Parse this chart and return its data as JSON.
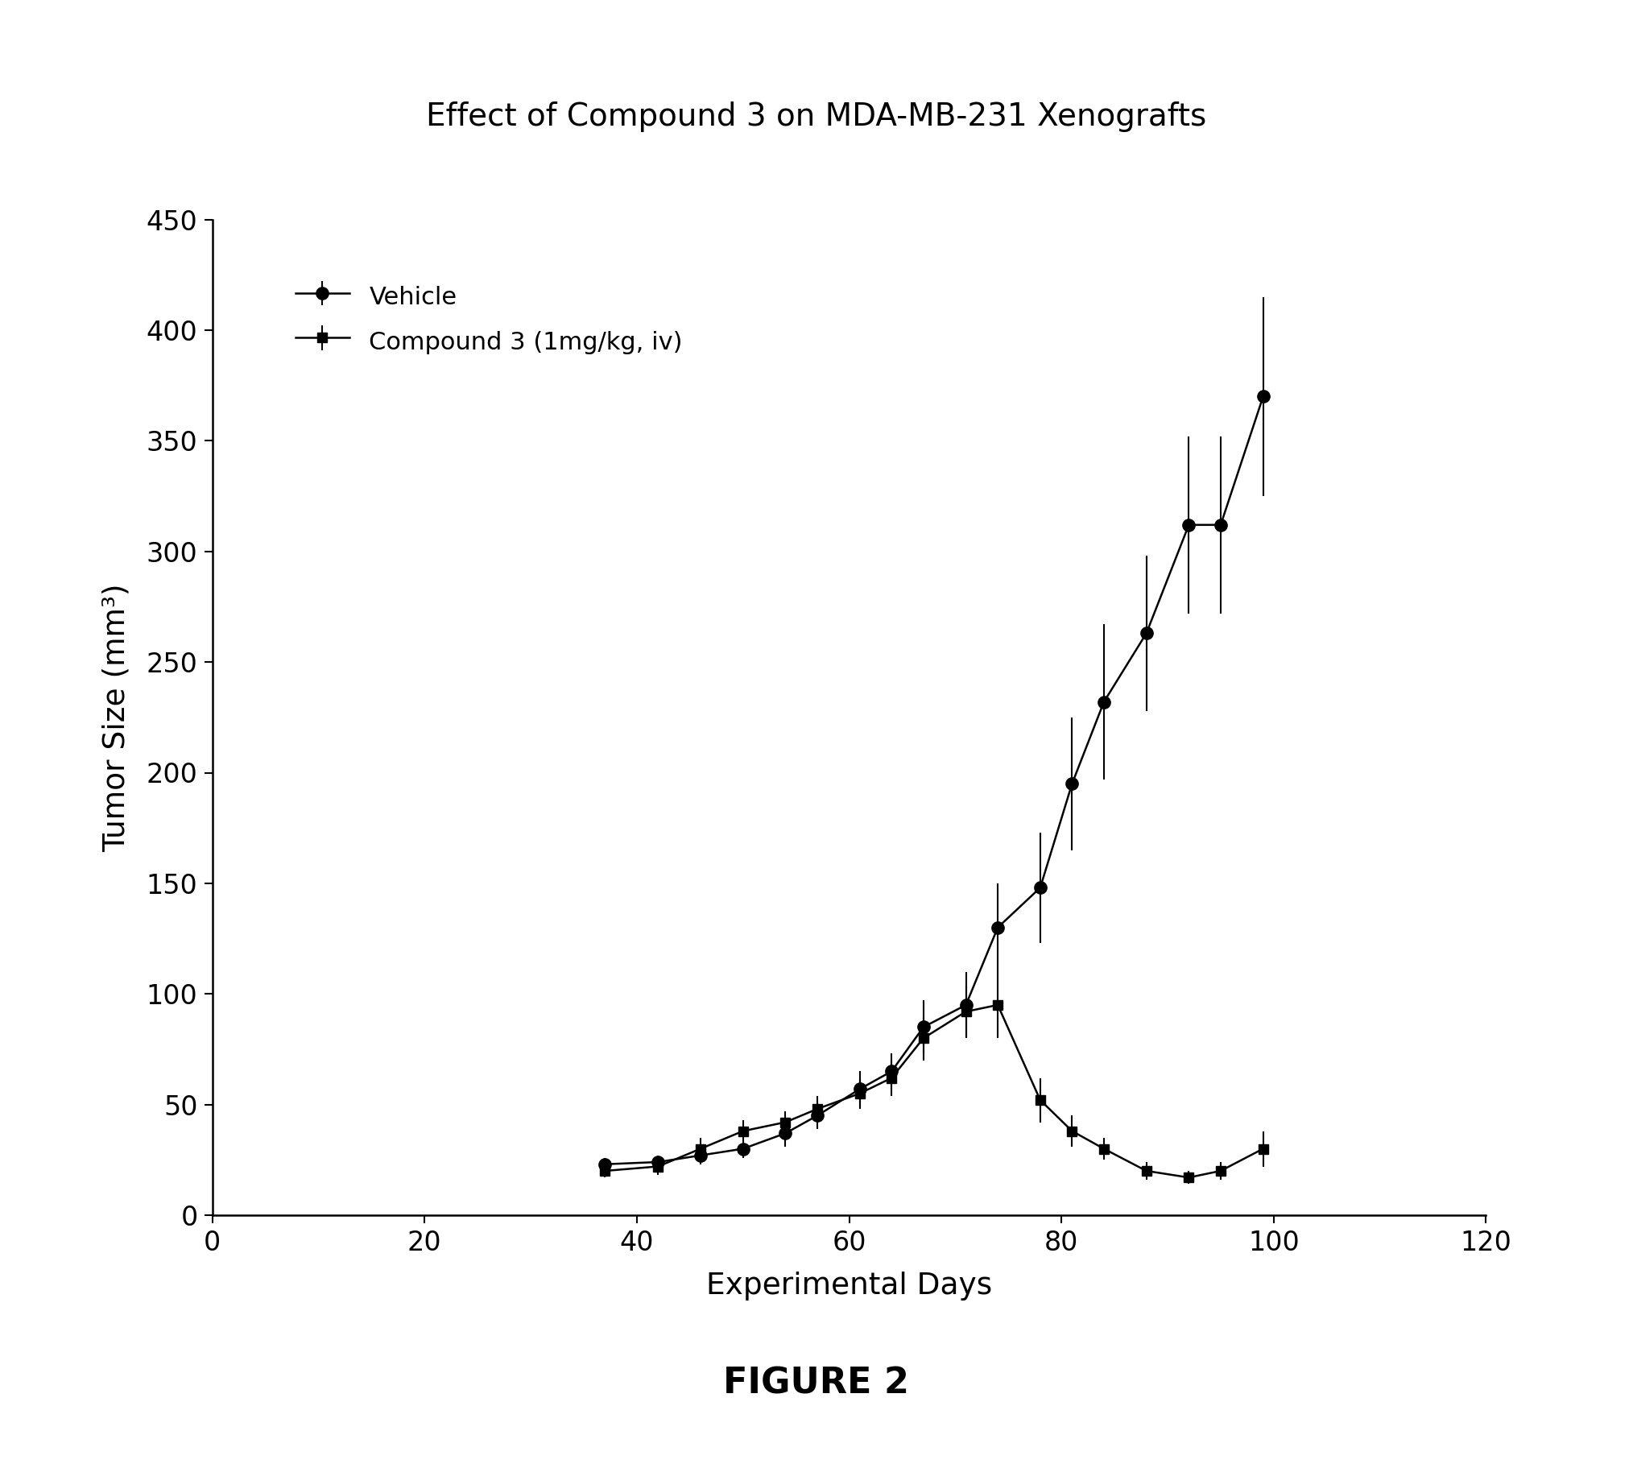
{
  "title": "Effect of Compound 3 on MDA-MB-231 Xenografts",
  "xlabel": "Experimental Days",
  "ylabel": "Tumor Size (mm³)",
  "figure_label": "FIGURE 2",
  "xlim": [
    0,
    120
  ],
  "ylim": [
    0,
    450
  ],
  "xticks": [
    0,
    20,
    40,
    60,
    80,
    100,
    120
  ],
  "yticks": [
    0,
    50,
    100,
    150,
    200,
    250,
    300,
    350,
    400,
    450
  ],
  "vehicle_x": [
    37,
    42,
    46,
    50,
    54,
    57,
    61,
    64,
    67,
    71,
    74,
    78,
    81,
    84,
    88,
    92,
    95,
    99
  ],
  "vehicle_y": [
    23,
    24,
    27,
    30,
    37,
    45,
    57,
    65,
    85,
    95,
    130,
    148,
    195,
    232,
    263,
    312,
    312,
    370
  ],
  "vehicle_yerr": [
    3,
    3,
    4,
    4,
    6,
    6,
    8,
    8,
    12,
    15,
    20,
    25,
    30,
    35,
    35,
    40,
    40,
    45
  ],
  "compound_x": [
    37,
    42,
    46,
    50,
    54,
    57,
    61,
    64,
    67,
    71,
    74,
    78,
    81,
    84,
    88,
    92,
    95,
    99
  ],
  "compound_y": [
    20,
    22,
    30,
    38,
    42,
    48,
    55,
    62,
    80,
    92,
    95,
    52,
    38,
    30,
    20,
    17,
    20,
    30
  ],
  "compound_yerr": [
    3,
    4,
    5,
    5,
    5,
    6,
    7,
    8,
    10,
    12,
    15,
    10,
    7,
    5,
    4,
    3,
    4,
    8
  ],
  "line_color": "#000000",
  "bg_color": "#ffffff",
  "legend_vehicle": "Vehicle",
  "legend_compound": "Compound 3 (1mg/kg, iv)"
}
